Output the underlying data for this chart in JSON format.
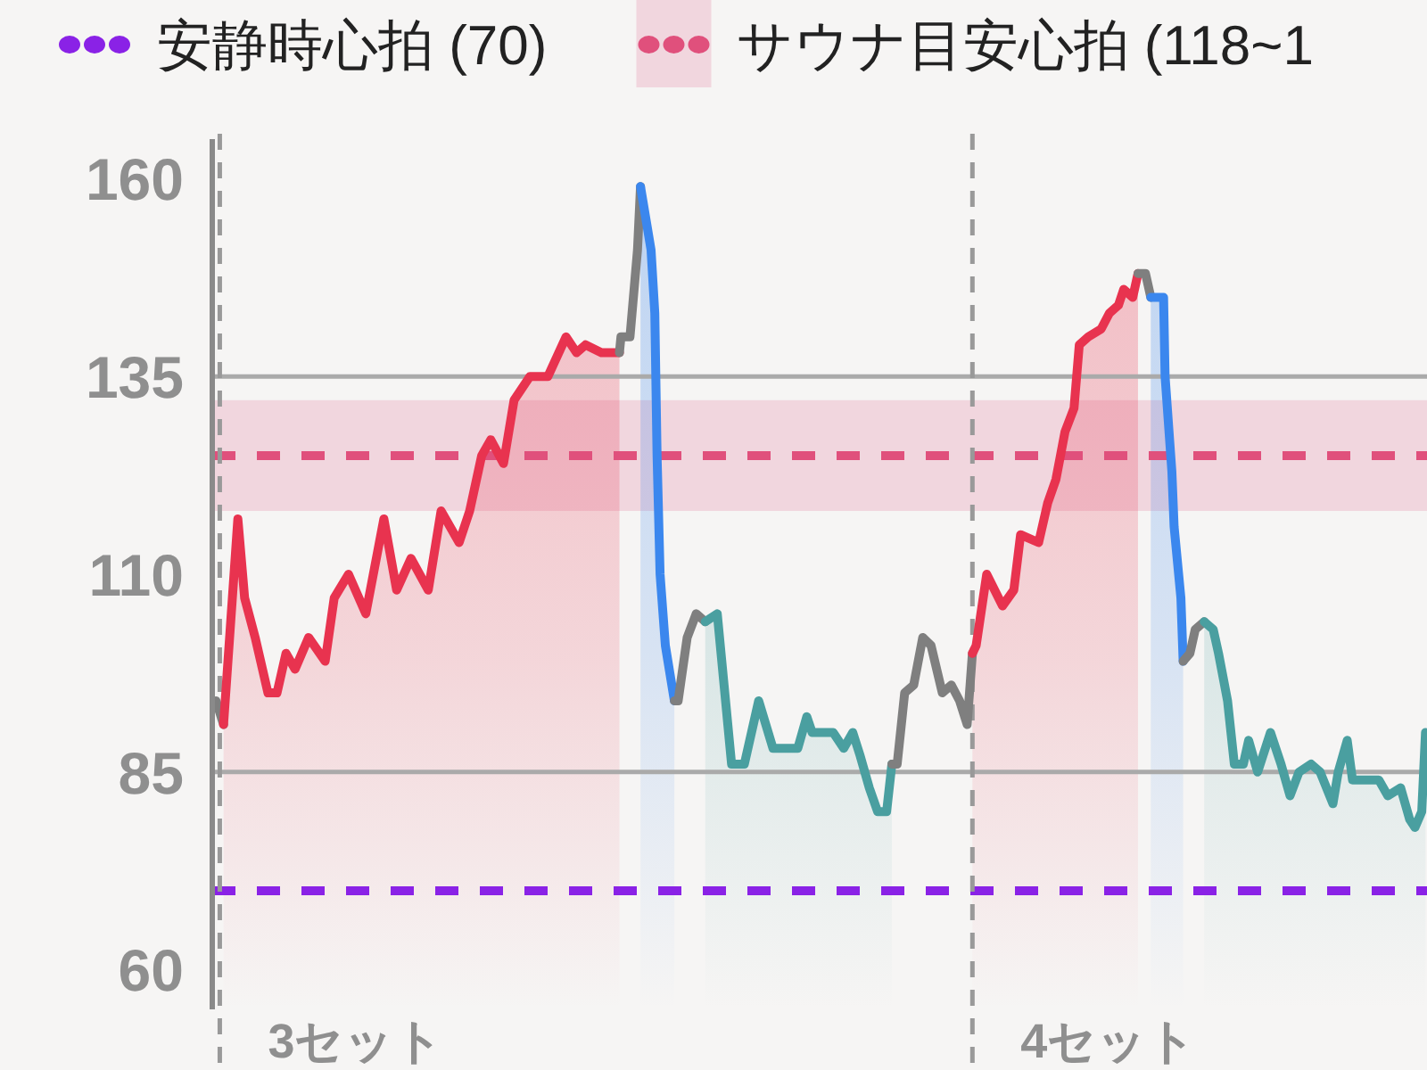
{
  "chart_data": {
    "type": "line",
    "legend": "top",
    "tick_labels": "y",
    "xlim": [
      2.99,
      4.604
    ],
    "ylim": [
      55,
      165
    ],
    "yticks": [
      60,
      85,
      110,
      135,
      160
    ],
    "series": [
      {
        "color": "#7f7f7f",
        "x": [
          2.995,
          3.005
        ],
        "values": [
          94,
          91
        ]
      },
      {
        "type": "area",
        "color": "#e8334f",
        "x": [
          3.005,
          3.024,
          3.033,
          3.047,
          3.064,
          3.076,
          3.088,
          3.1,
          3.118,
          3.14,
          3.152,
          3.171,
          3.194,
          3.218,
          3.235,
          3.254,
          3.277,
          3.294,
          3.318,
          3.332,
          3.348,
          3.36,
          3.377,
          3.391,
          3.412,
          3.436,
          3.46,
          3.474,
          3.486,
          3.507,
          3.531
        ],
        "values": [
          91,
          117,
          107,
          102,
          95,
          95,
          100,
          98,
          102,
          99,
          107,
          110,
          105,
          117,
          108,
          112,
          108,
          118,
          114,
          118,
          125,
          127,
          124,
          132,
          135,
          135,
          140,
          138,
          139,
          138,
          138
        ]
      },
      {
        "color": "#7f7f7f",
        "x": [
          3.531,
          3.533,
          3.545,
          3.555,
          3.559
        ],
        "values": [
          138,
          140,
          140,
          151,
          159
        ]
      },
      {
        "type": "area",
        "color": "#3b87ee",
        "x": [
          3.559,
          3.573,
          3.578,
          3.581,
          3.585,
          3.592,
          3.604
        ],
        "values": [
          159,
          151,
          143,
          125,
          110,
          101,
          94
        ]
      },
      {
        "color": "#7f7f7f",
        "x": [
          3.604,
          3.609,
          3.621,
          3.633,
          3.645
        ],
        "values": [
          94,
          94,
          102,
          105,
          104
        ]
      },
      {
        "type": "area",
        "color": "#4a9fa0",
        "x": [
          3.645,
          3.661,
          3.68,
          3.697,
          3.716,
          3.735,
          3.768,
          3.78,
          3.787,
          3.815,
          3.829,
          3.841,
          3.851,
          3.863,
          3.874,
          3.886,
          3.893
        ],
        "values": [
          104,
          105,
          86,
          86,
          94,
          88,
          88,
          92,
          90,
          90,
          88,
          90,
          87,
          83,
          80,
          80,
          86
        ]
      },
      {
        "color": "#7f7f7f",
        "x": [
          3.893,
          3.9,
          3.91,
          3.922,
          3.934,
          3.945,
          3.96,
          3.972,
          3.983,
          3.993,
          4.0
        ],
        "values": [
          86,
          86,
          95,
          96,
          102,
          101,
          95,
          96,
          94,
          91,
          100
        ]
      },
      {
        "type": "area",
        "color": "#e8334f",
        "x": [
          4.0,
          4.005,
          4.019,
          4.04,
          4.055,
          4.064,
          4.088,
          4.1,
          4.111,
          4.123,
          4.135,
          4.142,
          4.154,
          4.171,
          4.182,
          4.194,
          4.201,
          4.213,
          4.22
        ],
        "values": [
          100,
          101,
          110,
          106,
          108,
          115,
          114,
          119,
          122,
          128,
          131,
          139,
          140,
          141,
          143,
          144,
          146,
          145,
          148
        ]
      },
      {
        "color": "#7f7f7f",
        "x": [
          4.22,
          4.23,
          4.237
        ],
        "values": [
          148,
          148,
          145
        ]
      },
      {
        "type": "area",
        "color": "#3b87ee",
        "x": [
          4.237,
          4.254,
          4.256,
          4.265,
          4.268,
          4.277,
          4.28
        ],
        "values": [
          145,
          145,
          135,
          123,
          116,
          107,
          99
        ]
      },
      {
        "color": "#7f7f7f",
        "x": [
          4.28,
          4.289,
          4.296,
          4.308
        ],
        "values": [
          99,
          100,
          103,
          104
        ]
      },
      {
        "type": "area",
        "color": "#4a9fa0",
        "x": [
          4.308,
          4.32,
          4.327,
          4.339,
          4.348,
          4.36,
          4.367,
          4.379,
          4.396,
          4.41,
          4.422,
          4.434,
          4.45,
          4.462,
          4.479,
          4.486,
          4.498,
          4.505,
          4.526,
          4.54,
          4.552,
          4.569,
          4.581,
          4.588,
          4.597,
          4.602
        ],
        "values": [
          104,
          103,
          100,
          94,
          86,
          86,
          89,
          85,
          90,
          86,
          82,
          85,
          86,
          85,
          81,
          85,
          89,
          84,
          84,
          84,
          82,
          83,
          79,
          78,
          80,
          90
        ]
      }
    ],
    "ref_lines": [
      {
        "axis": "y",
        "value": 70,
        "label": "安静時心拍 (70)",
        "color": "#8a22e6",
        "line_style": "dashed"
      },
      {
        "axis": "y",
        "value": 125,
        "color": "#e0507c",
        "line_style": "dashed"
      },
      {
        "axis": "y",
        "value": 85,
        "color": "#aaaaaa"
      },
      {
        "axis": "y",
        "value": 135,
        "color": "#aaaaaa"
      },
      {
        "axis": "x",
        "value": 3,
        "label": "3セット",
        "color": "#999999",
        "line_style": "dashed"
      },
      {
        "axis": "x",
        "value": 4,
        "label": "4セット",
        "color": "#999999",
        "line_style": "dashed"
      }
    ],
    "bands": [
      {
        "axis": "y",
        "from": 118,
        "to": 132,
        "label": "サウナ目安心拍 (118~1",
        "color": "#f1d6de"
      }
    ]
  }
}
